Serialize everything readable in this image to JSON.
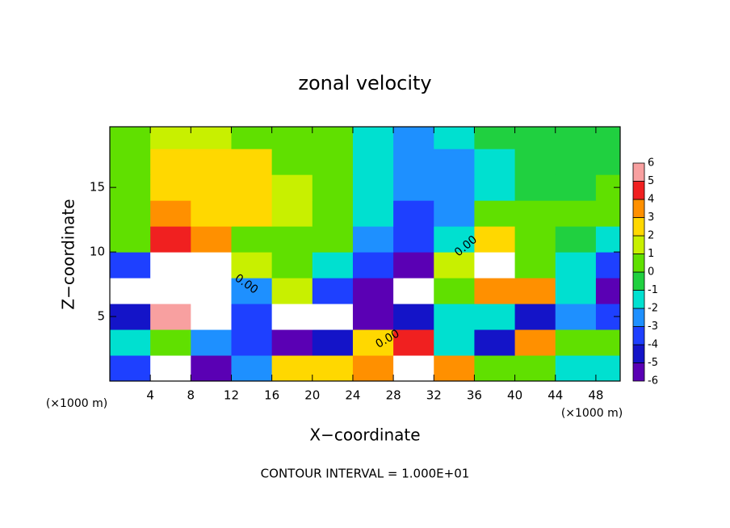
{
  "chart_data": {
    "type": "contourf",
    "title": "zonal velocity",
    "xlabel": "X−coordinate",
    "ylabel": "Z−coordinate",
    "x_unit": "(×1000 m)",
    "y_unit": "(×1000 m)",
    "footer": "CONTOUR INTERVAL = 1.000E+01",
    "contour_labels": [
      "0.00",
      "0.00",
      "0.00"
    ],
    "xlim": [
      0,
      50.4
    ],
    "ylim": [
      0,
      19.7
    ],
    "xticks": [
      4,
      8,
      12,
      16,
      20,
      24,
      28,
      32,
      36,
      40,
      44,
      48
    ],
    "yticks": [
      5,
      10,
      15
    ],
    "x": [
      2,
      6,
      10,
      14,
      18,
      22,
      26,
      30,
      34,
      38,
      42,
      46,
      50
    ],
    "z": [
      1,
      3,
      5,
      7,
      9,
      11,
      13,
      15,
      17,
      19
    ],
    "cell_width": 4,
    "cell_height": 2,
    "values": [
      [
        -3,
        -7,
        -5,
        -2,
        3,
        3,
        4,
        7,
        4,
        1,
        1,
        -1,
        -1
      ],
      [
        -1,
        0.5,
        -2,
        -3,
        -5,
        -4,
        3,
        5,
        -1,
        -4,
        4,
        1,
        1
      ],
      [
        -4,
        6,
        8,
        -3,
        -8,
        -8,
        -6,
        -4,
        -1,
        -1,
        -4,
        -2,
        -3
      ],
      [
        -7,
        8,
        8,
        -2,
        2,
        -3,
        -6,
        -8,
        1,
        4,
        4,
        -1,
        -6
      ],
      [
        -3,
        8,
        7,
        2,
        1,
        -1,
        -3,
        -5,
        2,
        7,
        0.5,
        -1,
        -3
      ],
      [
        1,
        5,
        4,
        1,
        0.5,
        0.5,
        -2,
        -3.5,
        -1,
        3,
        0.5,
        0,
        -1
      ],
      [
        1,
        3.5,
        2.5,
        3,
        1.5,
        0.5,
        -1.5,
        -3,
        -2,
        0.5,
        0.5,
        0.5,
        0.5
      ],
      [
        0.5,
        2.5,
        3,
        3,
        1.5,
        0.5,
        -1.5,
        -2.5,
        -2,
        -1,
        -0.5,
        -0.5,
        0.5
      ],
      [
        0.5,
        2.5,
        3,
        2.5,
        1,
        0.5,
        -1,
        -2,
        -2,
        -1,
        -0.5,
        -0.5,
        0
      ],
      [
        0.5,
        1.5,
        1.5,
        1,
        0.5,
        0.5,
        -1,
        -2,
        -1.5,
        -0.5,
        -0.5,
        -0.5,
        0
      ]
    ],
    "colorbar": {
      "levels": [
        -6,
        -5,
        -4,
        -3,
        -2,
        -1,
        0,
        1,
        2,
        3,
        4,
        5,
        6
      ],
      "colors": [
        "#5a00b4",
        "#1414c8",
        "#1e40ff",
        "#1e90ff",
        "#00e0d0",
        "#20d040",
        "#60e000",
        "#c8f000",
        "#ffd800",
        "#ff9000",
        "#f02020",
        "#f8a0a0"
      ],
      "out_of_range_color": "#ffffff"
    }
  }
}
